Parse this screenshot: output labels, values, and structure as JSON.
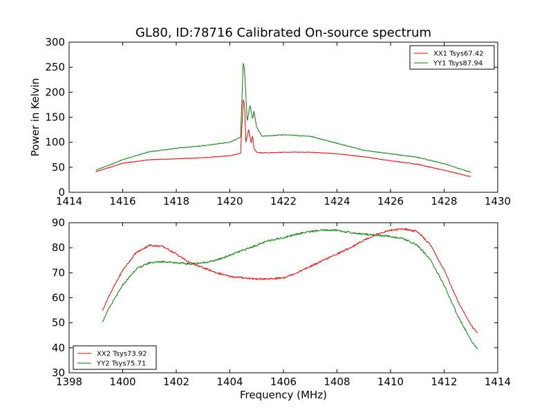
{
  "chart_data": [
    {
      "type": "line",
      "title": "GL80, ID:78716 Calibrated On-source spectrum",
      "xlabel": "",
      "ylabel": "Power in Kelvin",
      "xlim": [
        1414,
        1430
      ],
      "ylim": [
        0,
        300
      ],
      "xticks": [
        "1414",
        "1416",
        "1418",
        "1420",
        "1422",
        "1424",
        "1426",
        "1428",
        "1430"
      ],
      "yticks": [
        "0",
        "50",
        "100",
        "150",
        "200",
        "250",
        "300"
      ],
      "legend": "top-right",
      "series": [
        {
          "name": "XX1 Tsys67.42",
          "color": "#ff0000",
          "x": [
            1415,
            1416,
            1417,
            1418,
            1419,
            1420,
            1420.4,
            1420.5,
            1420.55,
            1420.6,
            1420.7,
            1420.8,
            1420.85,
            1420.9,
            1421,
            1421.1,
            1421.5,
            1422,
            1423,
            1424,
            1425,
            1426,
            1427,
            1428,
            1429
          ],
          "y": [
            41,
            58,
            65,
            67,
            69,
            73,
            78,
            185,
            175,
            100,
            125,
            98,
            115,
            88,
            80,
            79,
            79,
            80,
            80,
            77,
            71,
            63,
            56,
            44,
            31
          ]
        },
        {
          "name": "YY1 Tsys87.94",
          "color": "#008000",
          "x": [
            1415,
            1416,
            1417,
            1418,
            1419,
            1420,
            1420.4,
            1420.5,
            1420.55,
            1420.65,
            1420.75,
            1420.85,
            1420.9,
            1421,
            1421.2,
            1422,
            1423,
            1424,
            1425,
            1426,
            1427,
            1428,
            1429
          ],
          "y": [
            44,
            65,
            81,
            88,
            93,
            100,
            110,
            258,
            245,
            140,
            175,
            145,
            162,
            130,
            112,
            115,
            112,
            98,
            84,
            77,
            70,
            57,
            40
          ]
        }
      ]
    },
    {
      "type": "line",
      "title": "",
      "xlabel": "Frequency (MHz)",
      "ylabel": "",
      "xlim": [
        1398,
        1414
      ],
      "ylim": [
        30,
        90
      ],
      "xticks": [
        "1398",
        "1400",
        "1402",
        "1404",
        "1406",
        "1408",
        "1410",
        "1412",
        "1414"
      ],
      "yticks": [
        "30",
        "40",
        "50",
        "60",
        "70",
        "80",
        "90"
      ],
      "legend": "bottom-left",
      "series": [
        {
          "name": "XX2 Tsys73.92",
          "color": "#ff0000",
          "x": [
            1399.25,
            1399.5,
            1400,
            1400.5,
            1401,
            1401.5,
            1402,
            1402.5,
            1403,
            1403.5,
            1404,
            1404.5,
            1405,
            1405.5,
            1406,
            1406.5,
            1407,
            1407.5,
            1408,
            1408.5,
            1409,
            1409.5,
            1410,
            1410.5,
            1411,
            1411.5,
            1412,
            1412.5,
            1413,
            1413.25
          ],
          "y": [
            55,
            61,
            71,
            78,
            81,
            80.5,
            77.5,
            74,
            72,
            70,
            68.5,
            68,
            67.5,
            67.5,
            68,
            70,
            72.5,
            75,
            77.5,
            80,
            83,
            85.5,
            87,
            87.5,
            86.5,
            81,
            71,
            59,
            49,
            46
          ]
        },
        {
          "name": "YY2 Tsys75.71",
          "color": "#008000",
          "x": [
            1399.25,
            1399.5,
            1400,
            1400.5,
            1401,
            1401.5,
            1402,
            1402.5,
            1403,
            1403.5,
            1404,
            1404.5,
            1405,
            1405.5,
            1406,
            1406.5,
            1407,
            1407.5,
            1408,
            1408.5,
            1409,
            1409.5,
            1410,
            1410.5,
            1411,
            1411.5,
            1412,
            1412.5,
            1413,
            1413.25
          ],
          "y": [
            50.5,
            56,
            65,
            71.5,
            74,
            74.5,
            74,
            73.5,
            74,
            75,
            77,
            79,
            81,
            83,
            84,
            85.5,
            86.5,
            87,
            87,
            86,
            85.5,
            85,
            84.5,
            83.5,
            81,
            75,
            65,
            53,
            43,
            39.5
          ]
        }
      ]
    }
  ]
}
